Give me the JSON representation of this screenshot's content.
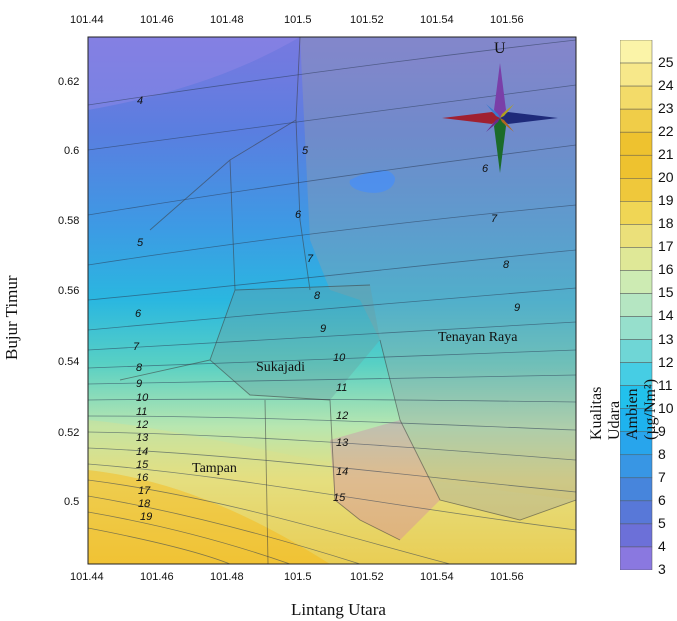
{
  "map": {
    "x_ticks": [
      "101.44",
      "101.46",
      "101.48",
      "101.5",
      "101.52",
      "101.54",
      "101.56"
    ],
    "y_ticks": [
      "0.62",
      "0.6",
      "0.58",
      "0.56",
      "0.54",
      "0.52",
      "0.5"
    ],
    "x_axis_title": "Lintang Utara",
    "y_axis_title": "Bujur Timur",
    "compass_label": "U",
    "districts": [
      {
        "name": "Tenayan Raya"
      },
      {
        "name": "Sukajadi"
      },
      {
        "name": "Tampan"
      }
    ],
    "contour_labels": [
      "4",
      "5",
      "6",
      "7",
      "8",
      "9",
      "10",
      "11",
      "12",
      "13",
      "14",
      "15",
      "16",
      "17",
      "18",
      "19"
    ],
    "colorbar": {
      "title": "Kualitas Udara Ambien (µg/Nm²)",
      "levels": [
        "25",
        "24",
        "23",
        "22",
        "21",
        "20",
        "19",
        "18",
        "17",
        "16",
        "15",
        "14",
        "13",
        "12",
        "11",
        "10",
        "9",
        "8",
        "7",
        "6",
        "5",
        "4",
        "3"
      ],
      "colors": [
        "#fbf4a8",
        "#f7e88a",
        "#f3db69",
        "#f0cd48",
        "#eec22f",
        "#eec22f",
        "#efc83b",
        "#f0d655",
        "#ebe07a",
        "#dfe897",
        "#cdebb3",
        "#b5e6c2",
        "#96dfcc",
        "#6fd6d6",
        "#46cde4",
        "#22c1ec",
        "#1eb3ee",
        "#28a5ec",
        "#3896e4",
        "#4785dc",
        "#5878d8",
        "#6c70d8",
        "#8a78e0"
      ]
    }
  }
}
